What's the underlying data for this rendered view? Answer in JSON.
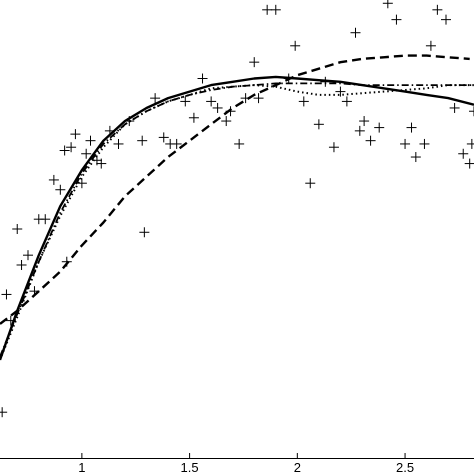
{
  "chart_data": {
    "type": "scatter",
    "title": "",
    "xlabel": "",
    "ylabel": "",
    "xlim": [
      0.62,
      2.82
    ],
    "ylim": [
      -0.1,
      1.3
    ],
    "grid": false,
    "legend": "none",
    "x_ticks": [
      {
        "value": 1,
        "label": "1"
      },
      {
        "value": 1.5,
        "label": "1.5"
      },
      {
        "value": 2,
        "label": "2"
      },
      {
        "value": 2.5,
        "label": "2.5"
      }
    ],
    "markers": {
      "symbol": "+",
      "color": "#000000",
      "points": [
        [
          0.63,
          0.04
        ],
        [
          0.65,
          0.4
        ],
        [
          0.67,
          0.32
        ],
        [
          0.7,
          0.6
        ],
        [
          0.72,
          0.49
        ],
        [
          0.75,
          0.52
        ],
        [
          0.78,
          0.41
        ],
        [
          0.8,
          0.63
        ],
        [
          0.83,
          0.63
        ],
        [
          0.87,
          0.75
        ],
        [
          0.9,
          0.72
        ],
        [
          0.92,
          0.84
        ],
        [
          0.93,
          0.5
        ],
        [
          0.95,
          0.85
        ],
        [
          0.97,
          0.89
        ],
        [
          1.0,
          0.74
        ],
        [
          1.02,
          0.83
        ],
        [
          1.04,
          0.87
        ],
        [
          1.07,
          0.81
        ],
        [
          1.09,
          0.8
        ],
        [
          1.13,
          0.9
        ],
        [
          1.17,
          0.86
        ],
        [
          1.22,
          0.93
        ],
        [
          1.28,
          0.87
        ],
        [
          1.29,
          0.59
        ],
        [
          1.34,
          1.0
        ],
        [
          1.38,
          0.88
        ],
        [
          1.41,
          0.86
        ],
        [
          1.44,
          0.86
        ],
        [
          1.48,
          0.99
        ],
        [
          1.52,
          0.94
        ],
        [
          1.56,
          1.06
        ],
        [
          1.6,
          0.99
        ],
        [
          1.63,
          0.97
        ],
        [
          1.67,
          0.93
        ],
        [
          1.69,
          0.96
        ],
        [
          1.73,
          0.86
        ],
        [
          1.76,
          1.0
        ],
        [
          1.8,
          1.11
        ],
        [
          1.82,
          1.0
        ],
        [
          1.86,
          1.27
        ],
        [
          1.9,
          1.27
        ],
        [
          1.96,
          1.06
        ],
        [
          1.99,
          1.16
        ],
        [
          2.03,
          0.99
        ],
        [
          2.06,
          0.74
        ],
        [
          2.1,
          0.92
        ],
        [
          2.13,
          1.05
        ],
        [
          2.17,
          0.85
        ],
        [
          2.2,
          1.02
        ],
        [
          2.23,
          0.99
        ],
        [
          2.27,
          1.2
        ],
        [
          2.29,
          0.9
        ],
        [
          2.31,
          0.93
        ],
        [
          2.34,
          0.87
        ],
        [
          2.38,
          0.91
        ],
        [
          2.42,
          1.29
        ],
        [
          2.46,
          1.24
        ],
        [
          2.5,
          0.86
        ],
        [
          2.53,
          0.91
        ],
        [
          2.55,
          0.82
        ],
        [
          2.59,
          0.86
        ],
        [
          2.62,
          1.16
        ],
        [
          2.65,
          1.27
        ],
        [
          2.69,
          1.24
        ],
        [
          2.73,
          0.97
        ],
        [
          2.77,
          0.83
        ],
        [
          2.8,
          0.8
        ],
        [
          2.81,
          0.86
        ],
        [
          2.82,
          0.96
        ]
      ]
    },
    "series": [
      {
        "style": "solid",
        "x": [
          0.62,
          0.7,
          0.8,
          0.9,
          1.0,
          1.1,
          1.2,
          1.3,
          1.4,
          1.5,
          1.6,
          1.7,
          1.8,
          1.9,
          2.0,
          2.1,
          2.2,
          2.3,
          2.4,
          2.5,
          2.6,
          2.7,
          2.82
        ],
        "y": [
          0.2,
          0.35,
          0.52,
          0.67,
          0.78,
          0.87,
          0.93,
          0.97,
          1.0,
          1.02,
          1.04,
          1.05,
          1.06,
          1.065,
          1.06,
          1.055,
          1.05,
          1.04,
          1.03,
          1.02,
          1.01,
          1.0,
          0.98
        ]
      },
      {
        "style": "dashed",
        "x": [
          0.62,
          0.7,
          0.8,
          0.9,
          1.0,
          1.1,
          1.2,
          1.3,
          1.4,
          1.5,
          1.6,
          1.7,
          1.8,
          1.9,
          2.0,
          2.1,
          2.2,
          2.3,
          2.4,
          2.5,
          2.6,
          2.7,
          2.8
        ],
        "y": [
          0.31,
          0.35,
          0.41,
          0.47,
          0.55,
          0.62,
          0.7,
          0.76,
          0.82,
          0.87,
          0.92,
          0.97,
          1.01,
          1.04,
          1.07,
          1.09,
          1.11,
          1.12,
          1.125,
          1.13,
          1.13,
          1.125,
          1.12
        ]
      },
      {
        "style": "dotted",
        "x": [
          0.62,
          0.7,
          0.8,
          0.9,
          1.0,
          1.1,
          1.2,
          1.3,
          1.4,
          1.5,
          1.6,
          1.7,
          1.8,
          1.9,
          2.0,
          2.1,
          2.2,
          2.3,
          2.4,
          2.5,
          2.6,
          2.7,
          2.82
        ],
        "y": [
          0.2,
          0.33,
          0.5,
          0.64,
          0.76,
          0.85,
          0.92,
          0.96,
          0.99,
          1.01,
          1.03,
          1.035,
          1.04,
          1.035,
          1.02,
          1.01,
          1.01,
          1.015,
          1.02,
          1.025,
          1.03,
          1.04,
          1.04
        ]
      },
      {
        "style": "dash-dot",
        "x": [
          0.62,
          0.7,
          0.8,
          0.9,
          1.0,
          1.1,
          1.2,
          1.3,
          1.4,
          1.5,
          1.6,
          1.7,
          1.8,
          1.9,
          2.0,
          2.1,
          2.2,
          2.3,
          2.4,
          2.5,
          2.6,
          2.7,
          2.82
        ],
        "y": [
          0.21,
          0.34,
          0.5,
          0.65,
          0.77,
          0.86,
          0.92,
          0.96,
          0.99,
          1.01,
          1.025,
          1.035,
          1.04,
          1.045,
          1.045,
          1.045,
          1.045,
          1.04,
          1.04,
          1.04,
          1.04,
          1.04,
          1.04
        ]
      }
    ]
  }
}
